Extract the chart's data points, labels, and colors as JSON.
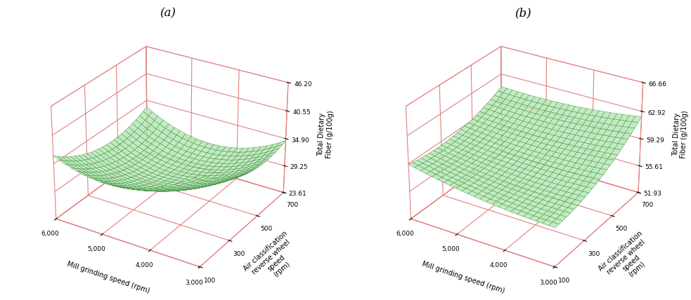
{
  "panel_a": {
    "title": "(a)",
    "zlabel": "Total Dietary\nFiber (g/100g)",
    "xlabel": "Mill grinding speed (rpm)",
    "ylabel": "Air classification\nreverse wheel\nspeed\n(rpm)",
    "x_ticks": [
      3000,
      4000,
      5000,
      6000
    ],
    "y_ticks": [
      100,
      300,
      500,
      700
    ],
    "z_ticks": [
      23.61,
      29.25,
      34.9,
      40.55,
      46.2
    ],
    "zlim": [
      23.61,
      46.2
    ],
    "surface_color": "#b8e8b8",
    "edge_color": "#3a8a3a",
    "surface_alpha": 0.85
  },
  "panel_b": {
    "title": "(b)",
    "zlabel": "Total Dietary\nFiber (g/100g)",
    "xlabel": "Mill grinding speed (rpm)",
    "ylabel": "Air classification\nreverse wheel\nspeed\n(rpm)",
    "x_ticks": [
      3000,
      4000,
      5000,
      6000
    ],
    "y_ticks": [
      100,
      300,
      500,
      700
    ],
    "z_ticks": [
      51.93,
      55.61,
      59.29,
      62.92,
      66.66
    ],
    "zlim": [
      51.93,
      66.66
    ],
    "surface_color": "#b8e8b8",
    "edge_color": "#3a8a3a",
    "surface_alpha": 0.85
  },
  "x_range": [
    3000,
    6000
  ],
  "y_range": [
    100,
    700
  ],
  "grid_n": 25,
  "pane_edge_color": "#e08080",
  "grid_color": "#e08080",
  "elev": 28,
  "azim": -58
}
